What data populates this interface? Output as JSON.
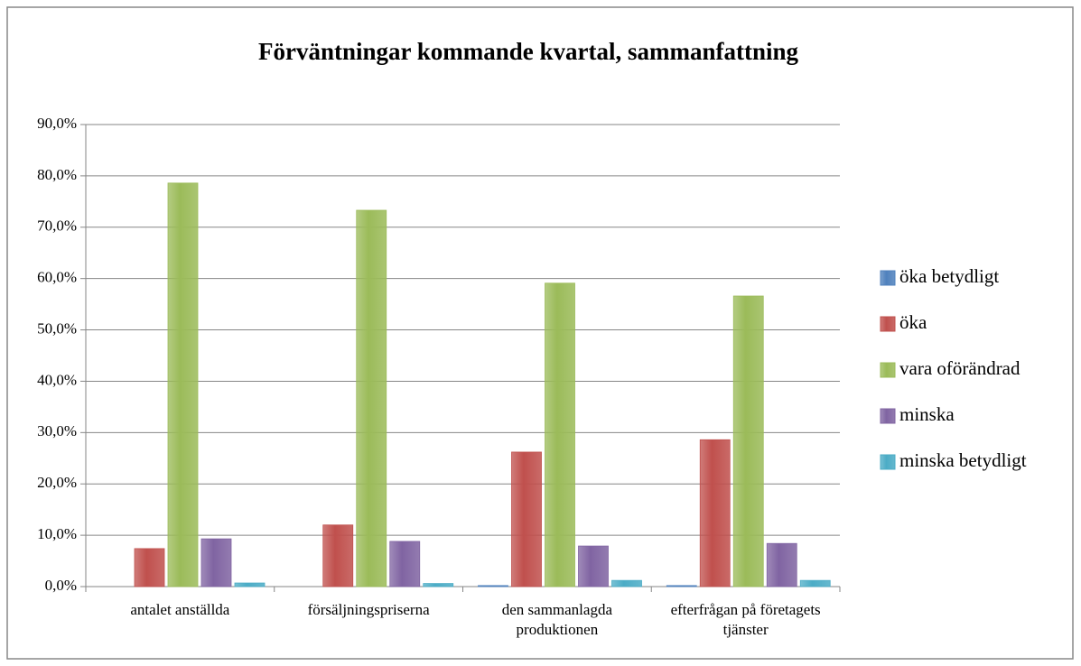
{
  "chart_data": {
    "type": "bar",
    "title": "Förväntningar kommande kvartal, sammanfattning",
    "categories": [
      "antalet anställda",
      "försäljningspriserna",
      "den sammanlagda produktionen",
      "efterfrågan på företagets tjänster"
    ],
    "series": [
      {
        "name": "öka betydligt",
        "color": "#4f81bd",
        "values": [
          0,
          0,
          0.2,
          0.2
        ]
      },
      {
        "name": "öka",
        "color": "#c0504d",
        "values": [
          7.4,
          12.0,
          26.2,
          28.6
        ]
      },
      {
        "name": "vara oförändrad",
        "color": "#9bbb59",
        "values": [
          78.6,
          73.3,
          59.1,
          56.6
        ]
      },
      {
        "name": "minska",
        "color": "#8064a2",
        "values": [
          9.3,
          8.8,
          7.9,
          8.4
        ]
      },
      {
        "name": "minska betydligt",
        "color": "#4bacc6",
        "values": [
          0.7,
          0.6,
          1.2,
          1.2
        ]
      }
    ],
    "ylim": [
      0,
      90
    ],
    "yticks": [
      {
        "value": 0,
        "label": "0,0%"
      },
      {
        "value": 10,
        "label": "10,0%"
      },
      {
        "value": 20,
        "label": "20,0%"
      },
      {
        "value": 30,
        "label": "30,0%"
      },
      {
        "value": 40,
        "label": "40,0%"
      },
      {
        "value": 50,
        "label": "50,0%"
      },
      {
        "value": 60,
        "label": "60,0%"
      },
      {
        "value": 70,
        "label": "70,0%"
      },
      {
        "value": 80,
        "label": "80,0%"
      },
      {
        "value": 90,
        "label": "90,0%"
      }
    ],
    "grid": true,
    "legend": "right"
  }
}
